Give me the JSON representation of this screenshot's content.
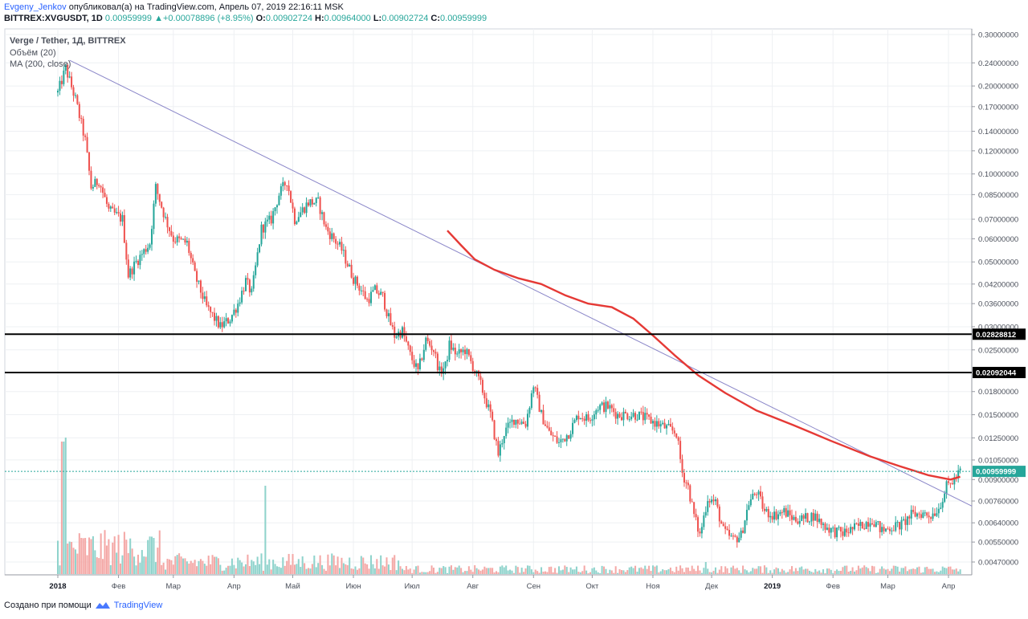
{
  "header": {
    "author": "Evgeny_Jenkov",
    "published": "опубликовал(а) на TradingView.com, Апрель 07, 2019 22:16:11 MSK"
  },
  "ohlc": {
    "symbol": "BITTREX:XVGUSDT, 1D",
    "last": "0.00959999",
    "change": "+0.00078896 (+8.95%)",
    "o_label": "O:",
    "o": "0.00902724",
    "h_label": "H:",
    "h": "0.00964000",
    "l_label": "L:",
    "l": "0.00902724",
    "c_label": "C:",
    "c": "0.00959999"
  },
  "legend": {
    "main": "Verge / Tether, 1Д, BITTREX",
    "volume": "Объём (20)",
    "ma": "MA (200, close)"
  },
  "footer": {
    "created": "Создано при помощи",
    "brand": "TradingView"
  },
  "colors": {
    "up": "#26a69a",
    "down": "#ef5350",
    "ma": "#e53935",
    "trendline": "#8a86c8",
    "level": "#000000",
    "last_price": "#26a69a"
  },
  "chart_data": {
    "type": "candlestick",
    "title": "Verge / Tether, 1Д, BITTREX",
    "y_scale": "log",
    "y_ticks": [
      "0.30000000",
      "0.24000000",
      "0.20000000",
      "0.17000000",
      "0.14000000",
      "0.12000000",
      "0.10000000",
      "0.08500000",
      "0.07000000",
      "0.06000000",
      "0.05000000",
      "0.04200000",
      "0.03600000",
      "0.03000000",
      "0.02500000",
      "0.01800000",
      "0.01500000",
      "0.01250000",
      "0.01050000",
      "0.00900000",
      "0.00760000",
      "0.00640000",
      "0.00550000",
      "0.00470000"
    ],
    "x_ticks": [
      {
        "label": "2018",
        "bold": true,
        "date": "2018-01-01"
      },
      {
        "label": "Фев",
        "bold": false,
        "date": "2018-02-01"
      },
      {
        "label": "Мар",
        "bold": false,
        "date": "2018-03-01"
      },
      {
        "label": "Апр",
        "bold": false,
        "date": "2018-04-01"
      },
      {
        "label": "Май",
        "bold": false,
        "date": "2018-05-01"
      },
      {
        "label": "Июн",
        "bold": false,
        "date": "2018-06-01"
      },
      {
        "label": "Июл",
        "bold": false,
        "date": "2018-07-01"
      },
      {
        "label": "Авг",
        "bold": false,
        "date": "2018-08-01"
      },
      {
        "label": "Сен",
        "bold": false,
        "date": "2018-09-01"
      },
      {
        "label": "Окт",
        "bold": false,
        "date": "2018-10-01"
      },
      {
        "label": "Ноя",
        "bold": false,
        "date": "2018-11-01"
      },
      {
        "label": "Дек",
        "bold": false,
        "date": "2018-12-01"
      },
      {
        "label": "2019",
        "bold": true,
        "date": "2019-01-01"
      },
      {
        "label": "Фев",
        "bold": false,
        "date": "2019-02-01"
      },
      {
        "label": "Мар",
        "bold": false,
        "date": "2019-03-01"
      },
      {
        "label": "Апр",
        "bold": false,
        "date": "2019-04-01"
      }
    ],
    "horizontal_levels": [
      {
        "label": "0.02828812",
        "value": 0.02828812
      },
      {
        "label": "0.02092044",
        "value": 0.02092044
      }
    ],
    "last_price": {
      "label": "0.00959999",
      "value": 0.00959999
    },
    "trendline": [
      {
        "date": "2018-01-07",
        "value": 0.245
      },
      {
        "date": "2019-04-13",
        "value": 0.0073
      }
    ],
    "close_path": [
      {
        "date": "2018-01-01",
        "value": 0.19
      },
      {
        "date": "2018-01-05",
        "value": 0.23
      },
      {
        "date": "2018-01-10",
        "value": 0.18
      },
      {
        "date": "2018-01-15",
        "value": 0.13
      },
      {
        "date": "2018-01-18",
        "value": 0.09
      },
      {
        "date": "2018-01-22",
        "value": 0.095
      },
      {
        "date": "2018-01-27",
        "value": 0.075
      },
      {
        "date": "2018-02-03",
        "value": 0.07
      },
      {
        "date": "2018-02-06",
        "value": 0.045
      },
      {
        "date": "2018-02-10",
        "value": 0.05
      },
      {
        "date": "2018-02-17",
        "value": 0.058
      },
      {
        "date": "2018-02-20",
        "value": 0.09
      },
      {
        "date": "2018-02-25",
        "value": 0.07
      },
      {
        "date": "2018-03-01",
        "value": 0.06
      },
      {
        "date": "2018-03-08",
        "value": 0.058
      },
      {
        "date": "2018-03-12",
        "value": 0.045
      },
      {
        "date": "2018-03-18",
        "value": 0.035
      },
      {
        "date": "2018-03-25",
        "value": 0.03
      },
      {
        "date": "2018-03-30",
        "value": 0.032
      },
      {
        "date": "2018-04-03",
        "value": 0.036
      },
      {
        "date": "2018-04-07",
        "value": 0.043
      },
      {
        "date": "2018-04-10",
        "value": 0.039
      },
      {
        "date": "2018-04-15",
        "value": 0.065
      },
      {
        "date": "2018-04-20",
        "value": 0.07
      },
      {
        "date": "2018-04-24",
        "value": 0.085
      },
      {
        "date": "2018-04-28",
        "value": 0.095
      },
      {
        "date": "2018-05-02",
        "value": 0.07
      },
      {
        "date": "2018-05-05",
        "value": 0.074
      },
      {
        "date": "2018-05-09",
        "value": 0.08
      },
      {
        "date": "2018-05-14",
        "value": 0.08
      },
      {
        "date": "2018-05-18",
        "value": 0.065
      },
      {
        "date": "2018-05-22",
        "value": 0.06
      },
      {
        "date": "2018-05-26",
        "value": 0.055
      },
      {
        "date": "2018-06-01",
        "value": 0.044
      },
      {
        "date": "2018-06-05",
        "value": 0.04
      },
      {
        "date": "2018-06-08",
        "value": 0.037
      },
      {
        "date": "2018-06-12",
        "value": 0.04
      },
      {
        "date": "2018-06-16",
        "value": 0.038
      },
      {
        "date": "2018-06-19",
        "value": 0.032
      },
      {
        "date": "2018-06-22",
        "value": 0.028
      },
      {
        "date": "2018-06-26",
        "value": 0.029
      },
      {
        "date": "2018-06-30",
        "value": 0.024
      },
      {
        "date": "2018-07-04",
        "value": 0.021
      },
      {
        "date": "2018-07-08",
        "value": 0.027
      },
      {
        "date": "2018-07-12",
        "value": 0.025
      },
      {
        "date": "2018-07-15",
        "value": 0.021
      },
      {
        "date": "2018-07-18",
        "value": 0.022
      },
      {
        "date": "2018-07-20",
        "value": 0.026
      },
      {
        "date": "2018-07-24",
        "value": 0.024
      },
      {
        "date": "2018-07-28",
        "value": 0.025
      },
      {
        "date": "2018-08-01",
        "value": 0.022
      },
      {
        "date": "2018-08-05",
        "value": 0.019
      },
      {
        "date": "2018-08-10",
        "value": 0.015
      },
      {
        "date": "2018-08-14",
        "value": 0.011
      },
      {
        "date": "2018-08-17",
        "value": 0.013
      },
      {
        "date": "2018-08-22",
        "value": 0.0145
      },
      {
        "date": "2018-08-28",
        "value": 0.014
      },
      {
        "date": "2018-09-01",
        "value": 0.019
      },
      {
        "date": "2018-09-05",
        "value": 0.015
      },
      {
        "date": "2018-09-09",
        "value": 0.013
      },
      {
        "date": "2018-09-14",
        "value": 0.012
      },
      {
        "date": "2018-09-19",
        "value": 0.013
      },
      {
        "date": "2018-09-24",
        "value": 0.015
      },
      {
        "date": "2018-09-29",
        "value": 0.0145
      },
      {
        "date": "2018-10-04",
        "value": 0.016
      },
      {
        "date": "2018-10-09",
        "value": 0.016
      },
      {
        "date": "2018-10-14",
        "value": 0.015
      },
      {
        "date": "2018-10-19",
        "value": 0.015
      },
      {
        "date": "2018-10-24",
        "value": 0.015
      },
      {
        "date": "2018-10-29",
        "value": 0.0145
      },
      {
        "date": "2018-11-03",
        "value": 0.014
      },
      {
        "date": "2018-11-08",
        "value": 0.0135
      },
      {
        "date": "2018-11-13",
        "value": 0.013
      },
      {
        "date": "2018-11-16",
        "value": 0.0095
      },
      {
        "date": "2018-11-19",
        "value": 0.0085
      },
      {
        "date": "2018-11-22",
        "value": 0.0068
      },
      {
        "date": "2018-11-25",
        "value": 0.0058
      },
      {
        "date": "2018-11-29",
        "value": 0.0078
      },
      {
        "date": "2018-12-03",
        "value": 0.0075
      },
      {
        "date": "2018-12-07",
        "value": 0.006
      },
      {
        "date": "2018-12-12",
        "value": 0.0056
      },
      {
        "date": "2018-12-16",
        "value": 0.0058
      },
      {
        "date": "2018-12-20",
        "value": 0.0075
      },
      {
        "date": "2018-12-24",
        "value": 0.0082
      },
      {
        "date": "2018-12-28",
        "value": 0.007
      },
      {
        "date": "2019-01-02",
        "value": 0.0068
      },
      {
        "date": "2019-01-07",
        "value": 0.007
      },
      {
        "date": "2019-01-12",
        "value": 0.0066
      },
      {
        "date": "2019-01-17",
        "value": 0.0066
      },
      {
        "date": "2019-01-22",
        "value": 0.0068
      },
      {
        "date": "2019-01-27",
        "value": 0.0063
      },
      {
        "date": "2019-02-01",
        "value": 0.006
      },
      {
        "date": "2019-02-06",
        "value": 0.0059
      },
      {
        "date": "2019-02-11",
        "value": 0.0061
      },
      {
        "date": "2019-02-16",
        "value": 0.0063
      },
      {
        "date": "2019-02-21",
        "value": 0.0066
      },
      {
        "date": "2019-02-26",
        "value": 0.006
      },
      {
        "date": "2019-03-03",
        "value": 0.0062
      },
      {
        "date": "2019-03-08",
        "value": 0.0063
      },
      {
        "date": "2019-03-13",
        "value": 0.0068
      },
      {
        "date": "2019-03-18",
        "value": 0.0069
      },
      {
        "date": "2019-03-23",
        "value": 0.0068
      },
      {
        "date": "2019-03-27",
        "value": 0.0072
      },
      {
        "date": "2019-03-31",
        "value": 0.0085
      },
      {
        "date": "2019-04-04",
        "value": 0.009
      },
      {
        "date": "2019-04-07",
        "value": 0.0096
      }
    ],
    "ma200": [
      {
        "date": "2018-07-19",
        "value": 0.064
      },
      {
        "date": "2018-07-26",
        "value": 0.057
      },
      {
        "date": "2018-08-02",
        "value": 0.051
      },
      {
        "date": "2018-08-12",
        "value": 0.047
      },
      {
        "date": "2018-08-24",
        "value": 0.044
      },
      {
        "date": "2018-09-05",
        "value": 0.042
      },
      {
        "date": "2018-09-17",
        "value": 0.0385
      },
      {
        "date": "2018-09-29",
        "value": 0.036
      },
      {
        "date": "2018-10-11",
        "value": 0.035
      },
      {
        "date": "2018-10-22",
        "value": 0.032
      },
      {
        "date": "2018-11-01",
        "value": 0.028
      },
      {
        "date": "2018-11-12",
        "value": 0.024
      },
      {
        "date": "2018-11-24",
        "value": 0.0205
      },
      {
        "date": "2018-12-08",
        "value": 0.0178
      },
      {
        "date": "2018-12-24",
        "value": 0.0155
      },
      {
        "date": "2019-01-12",
        "value": 0.0138
      },
      {
        "date": "2019-01-31",
        "value": 0.0122
      },
      {
        "date": "2019-02-20",
        "value": 0.0108
      },
      {
        "date": "2019-03-07",
        "value": 0.01
      },
      {
        "date": "2019-03-22",
        "value": 0.0093
      },
      {
        "date": "2019-04-02",
        "value": 0.009
      },
      {
        "date": "2019-04-07",
        "value": 0.0092
      }
    ]
  }
}
